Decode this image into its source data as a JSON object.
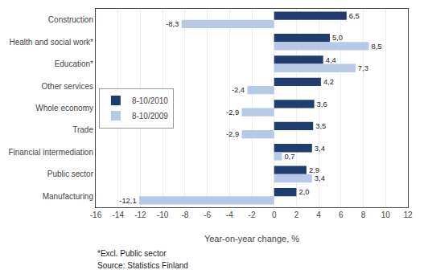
{
  "chart_data": {
    "type": "bar",
    "orientation": "horizontal",
    "categories": [
      "Construction",
      "Health and social work*",
      "Education*",
      "Other services",
      "Whole economy",
      "Trade",
      "Financial intermediation",
      "Public sector",
      "Manufacturing"
    ],
    "series": [
      {
        "name": "8-10/2010",
        "color": "#1F3D6E",
        "values": [
          6.5,
          5.0,
          4.4,
          4.2,
          3.6,
          3.5,
          3.4,
          2.9,
          2.0
        ],
        "value_labels": [
          "6,5",
          "5,0",
          "4,4",
          "4,2",
          "3,6",
          "3,5",
          "3,4",
          "2,9",
          "2,0"
        ]
      },
      {
        "name": "8-10/2009",
        "color": "#B8C9E8",
        "values": [
          -8.3,
          8.5,
          7.3,
          -2.4,
          -2.9,
          -2.9,
          0.7,
          3.4,
          -12.1
        ],
        "value_labels": [
          "-8,3",
          "8,5",
          "7,3",
          "-2,4",
          "-2,9",
          "-2,9",
          "0,7",
          "3,4",
          "-12,1"
        ]
      }
    ],
    "xlabel": "Year-on-year change, %",
    "xlim": [
      -16,
      12
    ],
    "xticks": [
      -16,
      -14,
      -12,
      -10,
      -8,
      -6,
      -4,
      -2,
      0,
      2,
      4,
      6,
      8,
      10,
      12
    ],
    "grid": true,
    "legend": "center left",
    "data_labels": true,
    "annotations": [
      "*Excl. Public sector",
      "Source: Statistics Finland"
    ]
  }
}
